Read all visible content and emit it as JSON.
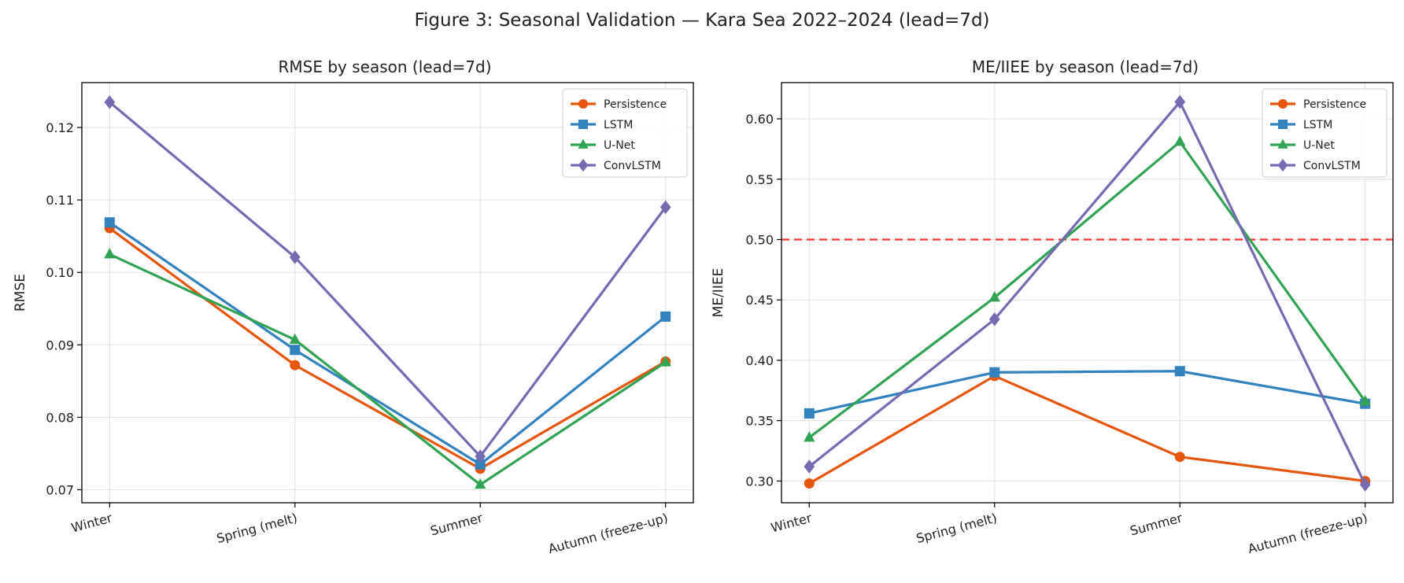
{
  "figure": {
    "title": "Figure 3: Seasonal Validation — Kara Sea 2022–2024 (lead=7d)"
  },
  "colors": {
    "Persistence": "#e6550d",
    "LSTM": "#3182bd",
    "U-Net": "#31a354",
    "ConvLSTM": "#756bb1",
    "threshold": "#ff3333",
    "grid": "#e0e0e0"
  },
  "chart_data": [
    {
      "type": "line",
      "title": "RMSE by season (lead=7d)",
      "xlabel": "",
      "ylabel": "RMSE",
      "categories": [
        "Winter",
        "Spring (melt)",
        "Summer",
        "Autumn (freeze-up)"
      ],
      "ylim": [
        0.0682,
        0.1262
      ],
      "yticks": [
        0.07,
        0.08,
        0.09,
        0.1,
        0.11,
        0.12
      ],
      "ytick_labels": [
        "0.07",
        "0.08",
        "0.09",
        "0.10",
        "0.11",
        "0.12"
      ],
      "grid": true,
      "legend": "upper right",
      "series": [
        {
          "name": "Persistence",
          "marker": "circle",
          "values": [
            0.1061,
            0.0872,
            0.0729,
            0.0877
          ]
        },
        {
          "name": "LSTM",
          "marker": "square",
          "values": [
            0.1069,
            0.0893,
            0.0735,
            0.0939
          ]
        },
        {
          "name": "U-Net",
          "marker": "triangle",
          "values": [
            0.1025,
            0.0907,
            0.0707,
            0.0876
          ]
        },
        {
          "name": "ConvLSTM",
          "marker": "diamond",
          "values": [
            0.1235,
            0.1021,
            0.0746,
            0.109
          ]
        }
      ]
    },
    {
      "type": "line",
      "title": "ME/IIEE by season (lead=7d)",
      "xlabel": "",
      "ylabel": "ME/IIEE",
      "categories": [
        "Winter",
        "Spring (melt)",
        "Summer",
        "Autumn (freeze-up)"
      ],
      "ylim": [
        0.282,
        0.63
      ],
      "yticks": [
        0.3,
        0.35,
        0.4,
        0.45,
        0.5,
        0.55,
        0.6
      ],
      "ytick_labels": [
        "0.30",
        "0.35",
        "0.40",
        "0.45",
        "0.50",
        "0.55",
        "0.60"
      ],
      "grid": true,
      "legend": "upper right",
      "hline": {
        "y": 0.5,
        "style": "dashed"
      },
      "series": [
        {
          "name": "Persistence",
          "marker": "circle",
          "values": [
            0.298,
            0.387,
            0.32,
            0.3
          ]
        },
        {
          "name": "LSTM",
          "marker": "square",
          "values": [
            0.356,
            0.39,
            0.391,
            0.364
          ]
        },
        {
          "name": "U-Net",
          "marker": "triangle",
          "values": [
            0.336,
            0.452,
            0.581,
            0.366
          ]
        },
        {
          "name": "ConvLSTM",
          "marker": "diamond",
          "values": [
            0.312,
            0.434,
            0.614,
            0.297
          ]
        }
      ]
    }
  ]
}
